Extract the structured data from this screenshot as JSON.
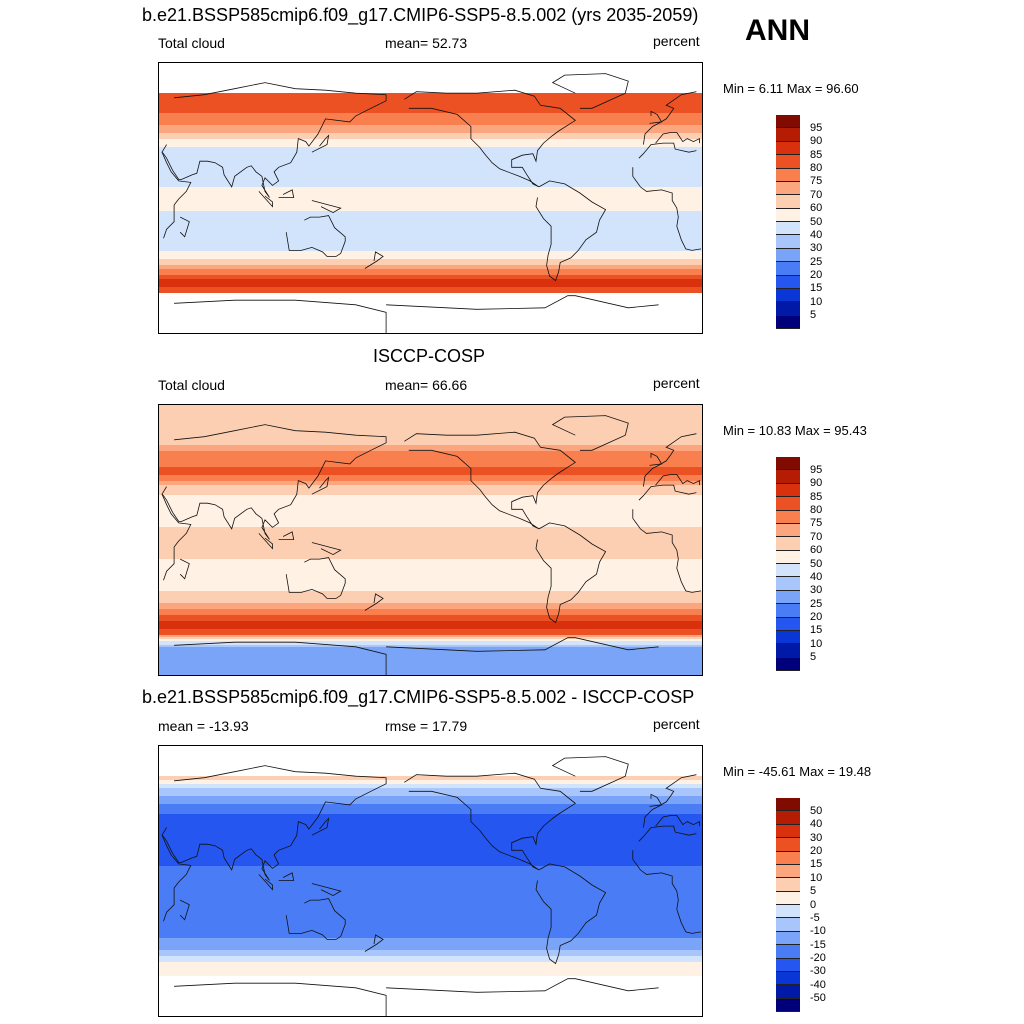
{
  "season": "ANN",
  "palette_abs": [
    "#00007a",
    "#0019a6",
    "#0a36d6",
    "#2556f0",
    "#4a7df5",
    "#7aa4f7",
    "#a8c6fb",
    "#d2e3fc",
    "#fff1e4",
    "#fdcfb2",
    "#fca680",
    "#f97f4f",
    "#ec5124",
    "#d9310e",
    "#b41d04",
    "#800b00"
  ],
  "palette_diff": [
    "#00007a",
    "#0019a6",
    "#0a36d6",
    "#2556f0",
    "#4a7df5",
    "#7aa4f7",
    "#a8c6fb",
    "#d2e3fc",
    "#fff1e4",
    "#fdcfb2",
    "#fca680",
    "#f97f4f",
    "#ec5124",
    "#d9310e",
    "#b41d04",
    "#800b00"
  ],
  "panels": [
    {
      "title": "b.e21.BSSP585cmip6.f09_g17.CMIP6-SSP5-8.5.002 (yrs 2035-2059)",
      "left": "Total cloud",
      "center": "mean=  52.73",
      "right": "percent",
      "minmax": "Min =   6.11 Max =  96.60",
      "ticks": [
        "95",
        "90",
        "85",
        "80",
        "75",
        "70",
        "60",
        "50",
        "40",
        "30",
        "25",
        "20",
        "15",
        "10",
        "5"
      ]
    },
    {
      "title": "ISCCP-COSP",
      "left": "Total cloud",
      "center": "mean=  66.66",
      "right": "percent",
      "minmax": "Min =  10.83 Max =  95.43",
      "ticks": [
        "95",
        "90",
        "85",
        "80",
        "75",
        "70",
        "60",
        "50",
        "40",
        "30",
        "25",
        "20",
        "15",
        "10",
        "5"
      ]
    },
    {
      "title": "b.e21.BSSP585cmip6.f09_g17.CMIP6-SSP5-8.5.002 - ISCCP-COSP",
      "left": "mean = -13.93",
      "center": "rmse =  17.79",
      "right": "percent",
      "minmax": "Min = -45.61 Max =  19.48",
      "ticks": [
        "50",
        "40",
        "30",
        "20",
        "15",
        "10",
        "5",
        "0",
        "-5",
        "-10",
        "-15",
        "-20",
        "-30",
        "-40",
        "-50"
      ]
    }
  ],
  "chart_data": [
    {
      "type": "heatmap",
      "title": "b.e21.BSSP585cmip6.f09_g17.CMIP6-SSP5-8.5.002 (yrs 2035-2059)",
      "variable": "Total cloud",
      "units": "percent",
      "mean": 52.73,
      "min": 6.11,
      "max": 96.6,
      "levels": [
        5,
        10,
        15,
        20,
        25,
        30,
        40,
        50,
        60,
        70,
        75,
        80,
        85,
        90,
        95
      ],
      "zonal_profile": {
        "lat": [
          90,
          70,
          60,
          45,
          30,
          15,
          0,
          -15,
          -30,
          -45,
          -55,
          -62,
          -70,
          -90
        ],
        "value": [
          null,
          80,
          82,
          72,
          40,
          45,
          55,
          45,
          40,
          72,
          88,
          82,
          null,
          null
        ]
      }
    },
    {
      "type": "heatmap",
      "title": "ISCCP-COSP",
      "variable": "Total cloud",
      "units": "percent",
      "mean": 66.66,
      "min": 10.83,
      "max": 95.43,
      "levels": [
        5,
        10,
        15,
        20,
        25,
        30,
        40,
        50,
        60,
        70,
        75,
        80,
        85,
        90,
        95
      ],
      "zonal_profile": {
        "lat": [
          90,
          70,
          60,
          45,
          30,
          15,
          0,
          -15,
          -30,
          -45,
          -55,
          -62,
          -70,
          -90
        ],
        "value": [
          60,
          62,
          75,
          82,
          60,
          55,
          68,
          58,
          55,
          75,
          88,
          80,
          30,
          28
        ]
      }
    },
    {
      "type": "heatmap",
      "title": "b.e21.BSSP585cmip6.f09_g17.CMIP6-SSP5-8.5.002 - ISCCP-COSP",
      "units": "percent",
      "mean": -13.93,
      "rmse": 17.79,
      "min": -45.61,
      "max": 19.48,
      "levels": [
        -50,
        -40,
        -30,
        -20,
        -15,
        -10,
        -5,
        0,
        5,
        10,
        15,
        20,
        30,
        40,
        50
      ],
      "zonal_profile": {
        "lat": [
          90,
          70,
          60,
          45,
          30,
          15,
          0,
          -15,
          -30,
          -45,
          -55,
          -62,
          -70,
          -90
        ],
        "value": [
          null,
          8,
          -8,
          -20,
          -25,
          -22,
          -15,
          -18,
          -20,
          -10,
          2,
          5,
          null,
          null
        ]
      }
    }
  ]
}
